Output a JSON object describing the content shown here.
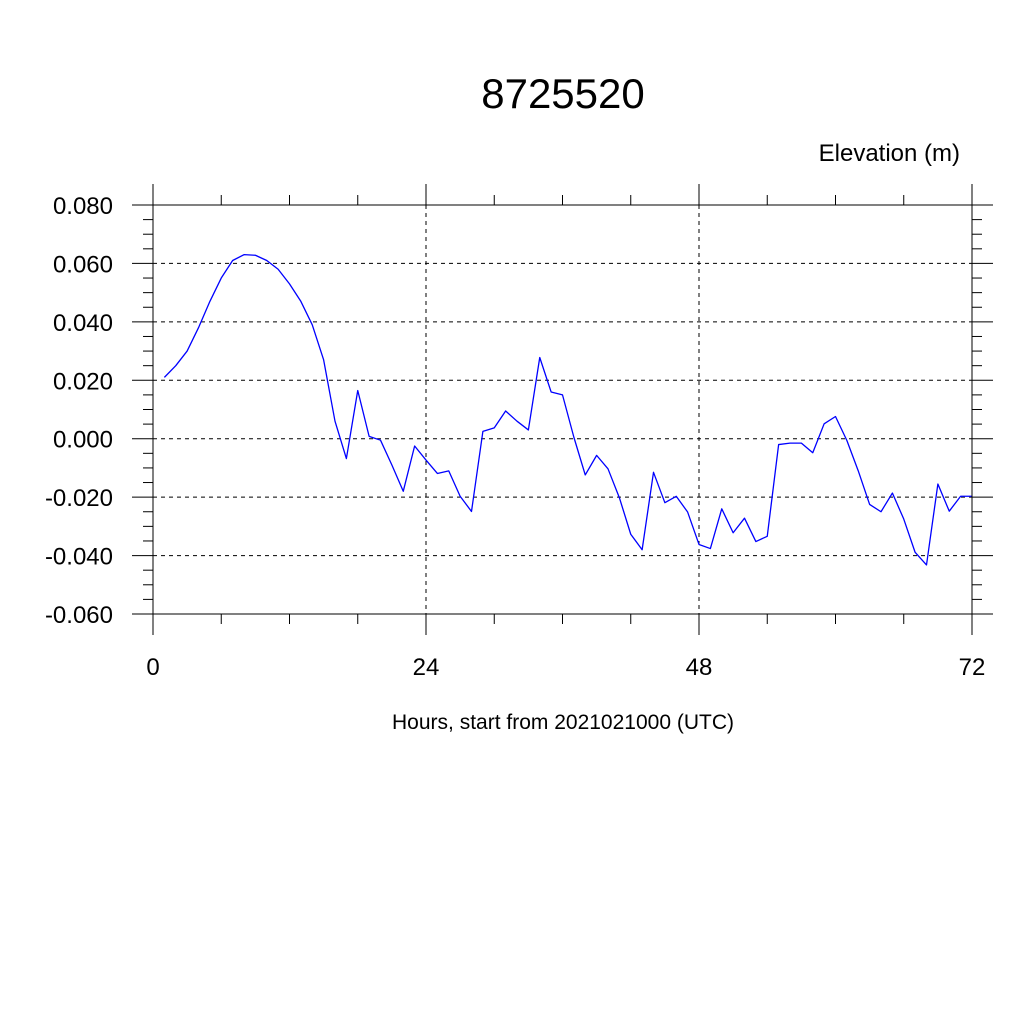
{
  "chart_data": {
    "type": "line",
    "title": "8725520",
    "ylabel": "Elevation (m)",
    "xlabel": "Hours, start from 2021021000 (UTC)",
    "xlim": [
      0,
      72
    ],
    "ylim": [
      -0.06,
      0.08
    ],
    "x_ticks": [
      0,
      24,
      48,
      72
    ],
    "x_tick_labels": [
      "0",
      "24",
      "48",
      "72"
    ],
    "y_ticks": [
      -0.06,
      -0.04,
      -0.02,
      0.0,
      0.02,
      0.04,
      0.06,
      0.08
    ],
    "y_tick_labels": [
      "-0.060",
      "-0.040",
      "-0.020",
      "0.000",
      "0.020",
      "0.040",
      "0.060",
      "0.080"
    ],
    "grid": true,
    "series": [
      {
        "color": "#0000ff",
        "x": [
          1,
          2,
          3,
          4,
          5,
          6,
          7,
          8,
          9,
          10,
          11,
          12,
          13,
          14,
          15,
          16,
          17,
          18,
          19,
          20,
          21,
          22,
          23,
          24,
          25,
          26,
          27,
          28,
          29,
          30,
          31,
          32,
          33,
          34,
          35,
          36,
          37,
          38,
          39,
          40,
          41,
          42,
          43,
          44,
          45,
          46,
          47,
          48,
          49,
          50,
          51,
          52,
          53,
          54,
          55,
          56,
          57,
          58,
          59,
          60,
          61,
          62,
          63,
          64,
          65,
          66,
          67,
          68,
          69,
          70,
          71,
          72
        ],
        "values": [
          0.021,
          0.025,
          0.03,
          0.038,
          0.047,
          0.055,
          0.061,
          0.063,
          0.0628,
          0.061,
          0.058,
          0.053,
          0.047,
          0.039,
          0.027,
          0.006,
          -0.0068,
          0.0165,
          0.0008,
          -0.0005,
          -0.009,
          -0.018,
          -0.0025,
          -0.0073,
          -0.0119,
          -0.011,
          -0.0197,
          -0.0249,
          0.0025,
          0.0037,
          0.0095,
          0.006,
          0.003,
          0.0278,
          0.016,
          0.015,
          0.0005,
          -0.0124,
          -0.0057,
          -0.0103,
          -0.0202,
          -0.0327,
          -0.038,
          -0.0115,
          -0.0219,
          -0.0197,
          -0.0251,
          -0.0362,
          -0.0376,
          -0.024,
          -0.0322,
          -0.0272,
          -0.0352,
          -0.0334,
          -0.002,
          -0.0015,
          -0.0015,
          -0.0048,
          0.0051,
          0.0076,
          -0.0006,
          -0.011,
          -0.0225,
          -0.025,
          -0.0186,
          -0.0275,
          -0.0389,
          -0.0432,
          -0.0155,
          -0.0248,
          -0.0197,
          -0.0197
        ]
      }
    ]
  }
}
